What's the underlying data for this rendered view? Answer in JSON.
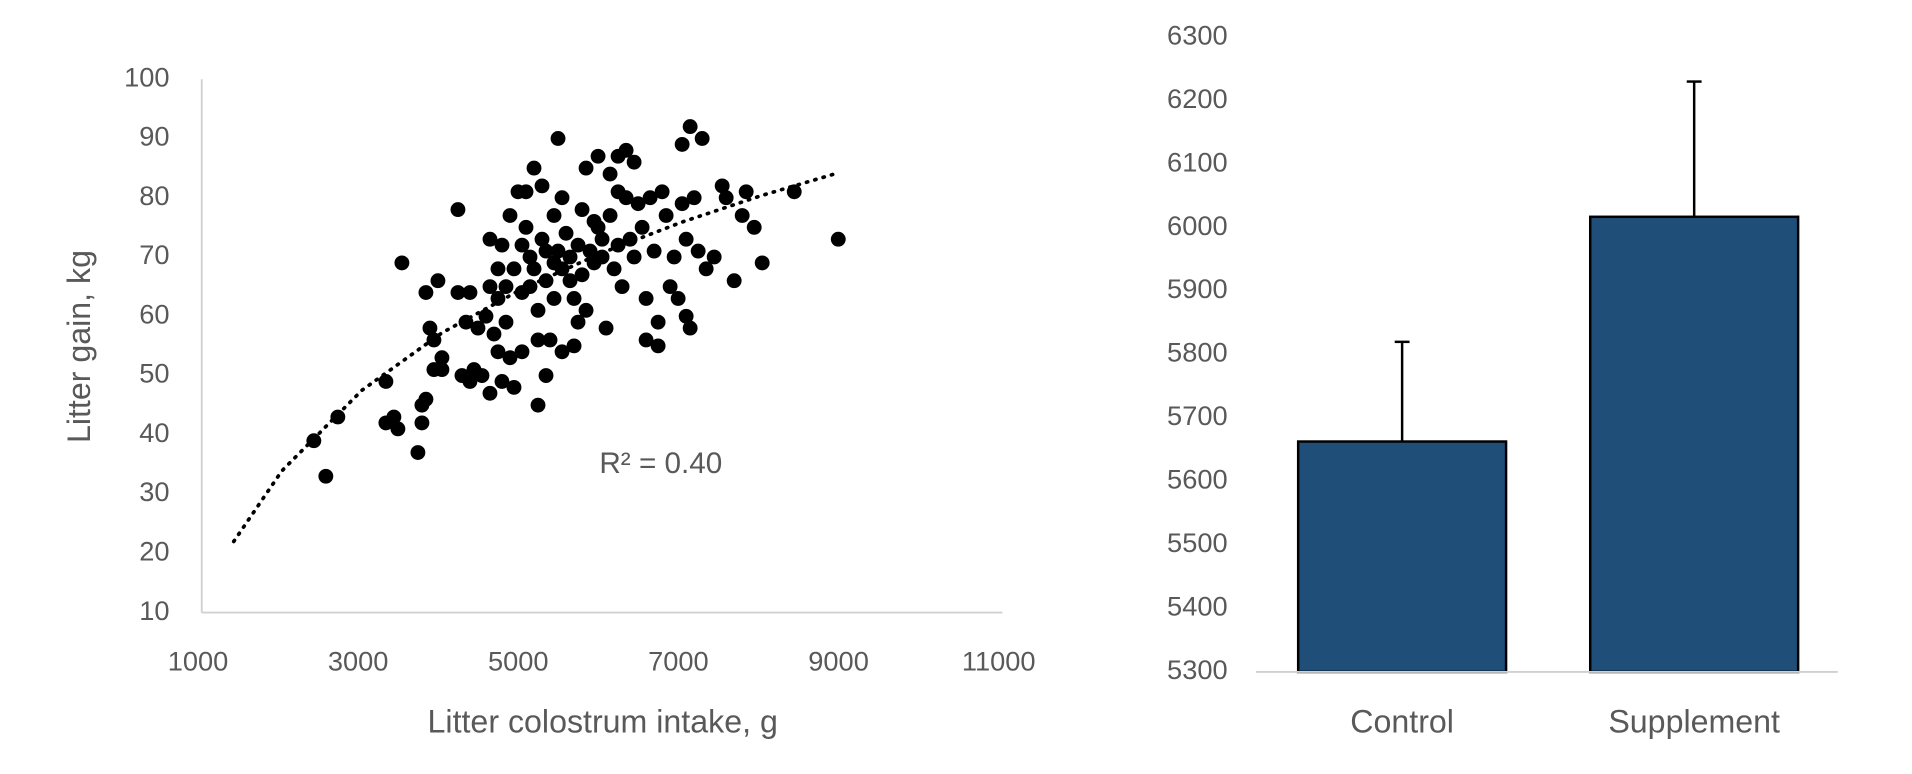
{
  "chart_data": [
    {
      "type": "scatter",
      "x_label": "Litter colostrum intake, g",
      "y_label": "Litter gain, kg",
      "annotation": "R² = 0.40",
      "color": "#000000",
      "xlim": [
        1000,
        11000
      ],
      "xticks": [
        1000,
        3000,
        5000,
        7000,
        9000,
        11000
      ],
      "ylim": [
        10,
        100
      ],
      "yticks": [
        10,
        20,
        30,
        40,
        50,
        60,
        70,
        80,
        90,
        100
      ],
      "x": [
        2400,
        2550,
        2700,
        3300,
        3300,
        3400,
        3450,
        3500,
        3700,
        3750,
        3750,
        3800,
        3800,
        3850,
        3900,
        3900,
        3950,
        4000,
        4000,
        4200,
        4200,
        4250,
        4300,
        4350,
        4350,
        4400,
        4450,
        4500,
        4550,
        4600,
        4600,
        4600,
        4650,
        4700,
        4700,
        4700,
        4750,
        4750,
        4800,
        4800,
        4850,
        4850,
        4900,
        4900,
        4950,
        5000,
        5000,
        5000,
        5050,
        5050,
        5100,
        5100,
        5150,
        5150,
        5200,
        5200,
        5200,
        5250,
        5250,
        5300,
        5300,
        5300,
        5350,
        5400,
        5400,
        5400,
        5450,
        5450,
        5500,
        5500,
        5500,
        5550,
        5600,
        5600,
        5650,
        5650,
        5700,
        5700,
        5750,
        5750,
        5800,
        5800,
        5850,
        5900,
        5900,
        5950,
        5950,
        6000,
        6000,
        6050,
        6100,
        6100,
        6150,
        6200,
        6200,
        6200,
        6250,
        6300,
        6300,
        6350,
        6400,
        6400,
        6450,
        6500,
        6550,
        6550,
        6600,
        6650,
        6700,
        6700,
        6750,
        6800,
        6850,
        6900,
        6950,
        7000,
        7000,
        7050,
        7050,
        7100,
        7100,
        7150,
        7200,
        7250,
        7300,
        7400,
        7500,
        7550,
        7650,
        7750,
        7800,
        7900,
        8000,
        8400,
        8950
      ],
      "values": [
        39,
        33,
        43,
        49,
        42,
        43,
        41,
        69,
        37,
        42,
        45,
        46,
        64,
        58,
        51,
        56,
        66,
        53,
        51,
        78,
        64,
        50,
        59,
        49,
        64,
        51,
        58,
        50,
        60,
        47,
        73,
        65,
        57,
        68,
        63,
        54,
        49,
        72,
        65,
        59,
        77,
        53,
        68,
        48,
        81,
        72,
        64,
        54,
        81,
        75,
        70,
        65,
        85,
        68,
        61,
        56,
        45,
        82,
        73,
        71,
        66,
        50,
        56,
        77,
        69,
        63,
        90,
        71,
        80,
        68,
        54,
        74,
        70,
        66,
        63,
        55,
        72,
        59,
        78,
        67,
        61,
        85,
        71,
        76,
        69,
        87,
        75,
        73,
        70,
        58,
        84,
        77,
        68,
        87,
        81,
        72,
        65,
        88,
        80,
        73,
        86,
        70,
        79,
        75,
        63,
        56,
        80,
        71,
        59,
        55,
        81,
        77,
        65,
        70,
        63,
        89,
        79,
        73,
        60,
        92,
        58,
        80,
        71,
        90,
        68,
        70,
        82,
        80,
        66,
        77,
        81,
        75,
        69,
        81,
        73
      ],
      "trendline": {
        "x": [
          1400,
          2000,
          3000,
          4000,
          5000,
          6000,
          7000,
          8000,
          8900
        ],
        "values": [
          22,
          33.9,
          47.5,
          57.2,
          64.6,
          70.7,
          75.9,
          80.4,
          84
        ]
      }
    },
    {
      "type": "bar",
      "color": "#1f4e79",
      "categories": [
        "Control",
        "Supplement"
      ],
      "values": [
        5663,
        6017
      ],
      "errors": [
        157,
        213
      ],
      "ylim": [
        5300,
        6300
      ],
      "yticks": [
        5300,
        5400,
        5500,
        5600,
        5700,
        5800,
        5900,
        6000,
        6100,
        6200,
        6300
      ]
    }
  ]
}
